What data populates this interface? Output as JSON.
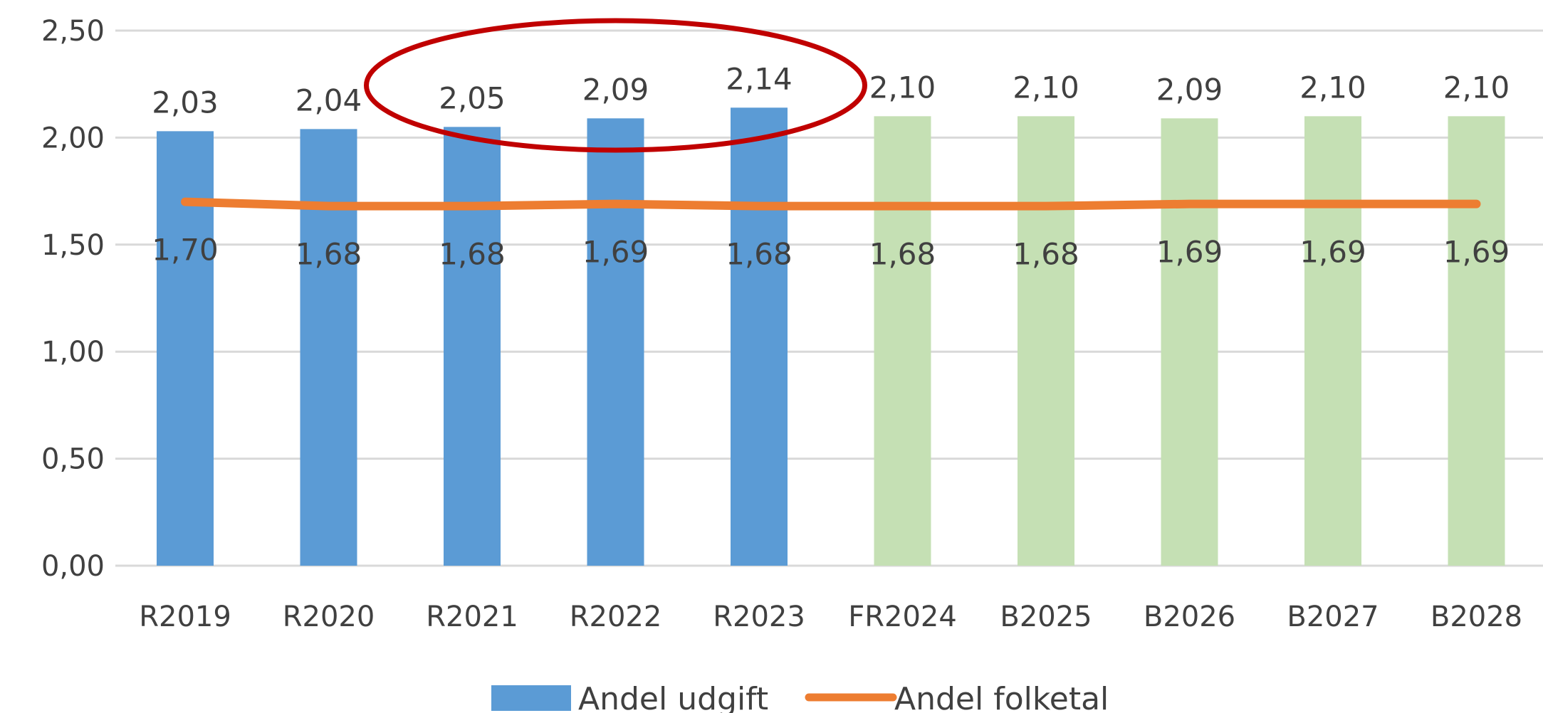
{
  "chart_data": {
    "type": "bar",
    "categories": [
      "R2019",
      "R2020",
      "R2021",
      "R2022",
      "R2023",
      "FR2024",
      "B2025",
      "B2026",
      "B2027",
      "B2028"
    ],
    "series": [
      {
        "name": "Andel udgift",
        "type": "bar",
        "values": [
          2.03,
          2.04,
          2.05,
          2.09,
          2.14,
          2.1,
          2.1,
          2.09,
          2.1,
          2.1
        ],
        "labels": [
          "2,03",
          "2,04",
          "2,05",
          "2,09",
          "2,14",
          "2,10",
          "2,10",
          "2,09",
          "2,10",
          "2,10"
        ],
        "colors": [
          "#5b9bd5",
          "#5b9bd5",
          "#5b9bd5",
          "#5b9bd5",
          "#5b9bd5",
          "#c5e0b4",
          "#c5e0b4",
          "#c5e0b4",
          "#c5e0b4",
          "#c5e0b4"
        ]
      },
      {
        "name": "Andel folketal",
        "type": "line",
        "values": [
          1.7,
          1.68,
          1.68,
          1.69,
          1.68,
          1.68,
          1.68,
          1.69,
          1.69,
          1.69
        ],
        "labels": [
          "1,70",
          "1,68",
          "1,68",
          "1,69",
          "1,68",
          "1,68",
          "1,68",
          "1,69",
          "1,69",
          "1,69"
        ],
        "color": "#ed7d31"
      }
    ],
    "ylim": [
      0,
      2.5
    ],
    "yticks": [
      0,
      0.5,
      1.0,
      1.5,
      2.0,
      2.5
    ],
    "ytick_labels": [
      "0,00",
      "0,50",
      "1,00",
      "1,50",
      "2,00",
      "2,50"
    ],
    "grid": true,
    "legend_position": "bottom-center",
    "annotation": {
      "shape": "ellipse",
      "color": "#c00000",
      "highlights": [
        "R2021",
        "R2022",
        "R2023"
      ]
    },
    "title": "",
    "xlabel": "",
    "ylabel": ""
  }
}
